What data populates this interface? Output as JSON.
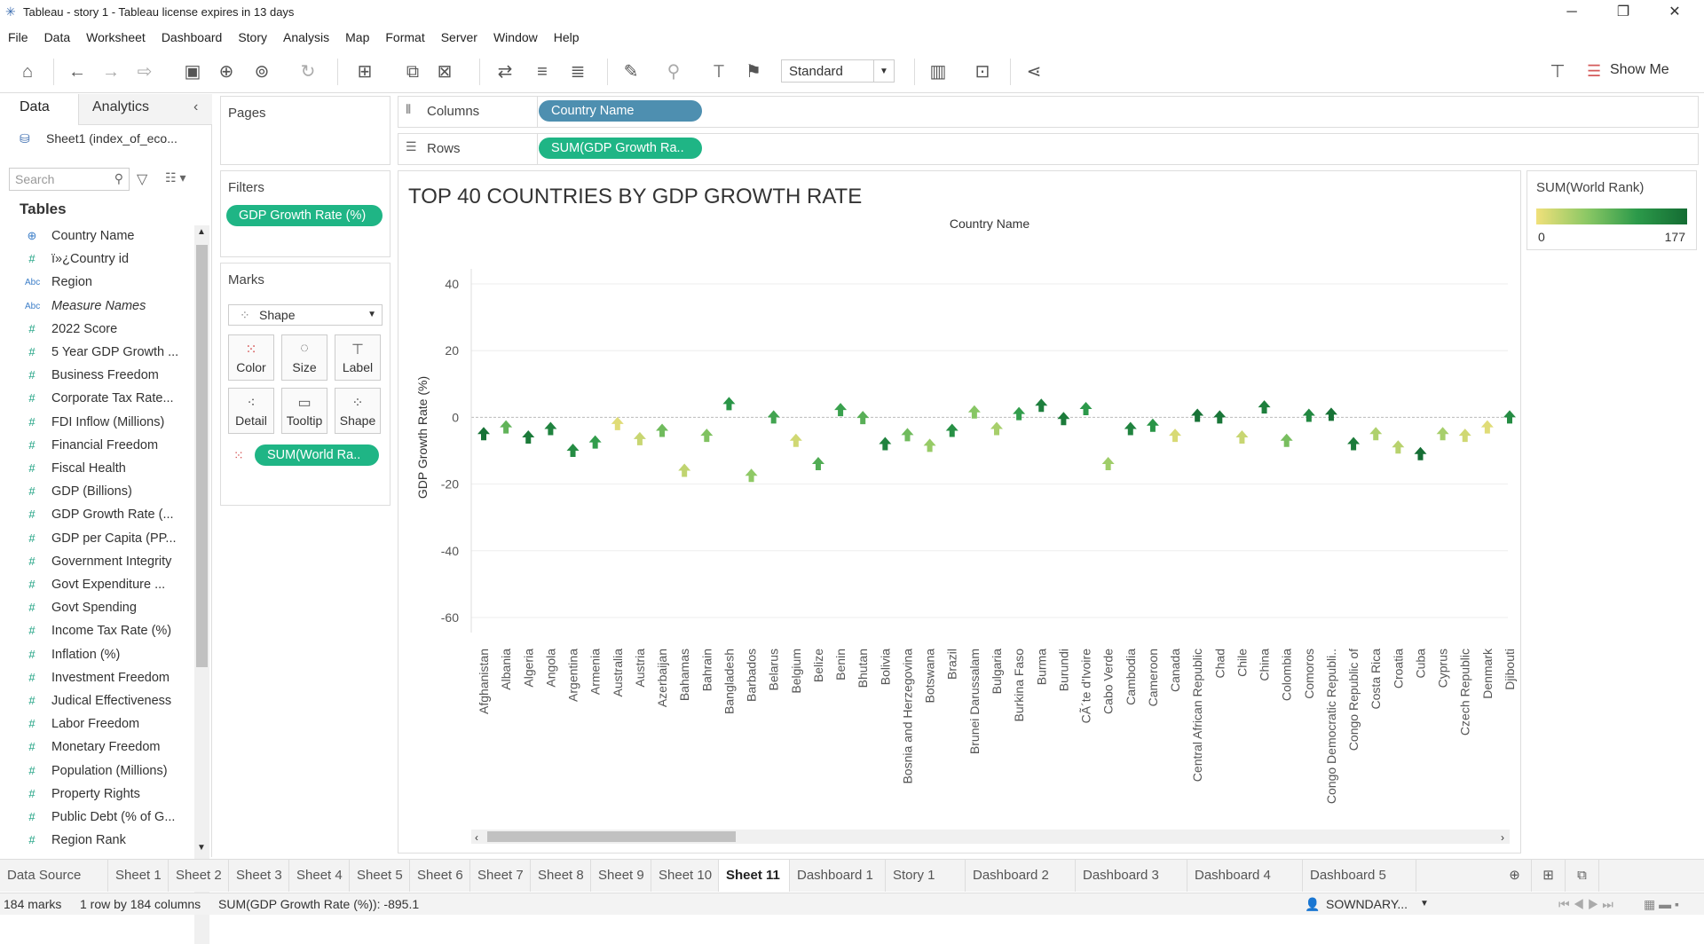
{
  "window": {
    "title": "Tableau - story 1 - Tableau license expires in 13 days"
  },
  "menu": [
    "File",
    "Data",
    "Worksheet",
    "Dashboard",
    "Story",
    "Analysis",
    "Map",
    "Format",
    "Server",
    "Window",
    "Help"
  ],
  "toolbar": {
    "fit": "Standard",
    "show_me": "Show Me"
  },
  "left_pane": {
    "tab_data": "Data",
    "tab_analytics": "Analytics",
    "datasource": "Sheet1 (index_of_eco...",
    "search_placeholder": "Search",
    "tables_heading": "Tables",
    "fields": [
      {
        "icon": "globe",
        "label": "Country Name"
      },
      {
        "icon": "#",
        "label": "ï»¿Country id"
      },
      {
        "icon": "Abc",
        "label": "Region"
      },
      {
        "icon": "Abc",
        "label": "Measure Names"
      },
      {
        "icon": "#",
        "label": "2022 Score"
      },
      {
        "icon": "#",
        "label": "5 Year GDP Growth ..."
      },
      {
        "icon": "#",
        "label": "Business Freedom"
      },
      {
        "icon": "#",
        "label": "Corporate Tax Rate..."
      },
      {
        "icon": "#",
        "label": "FDI Inflow (Millions)"
      },
      {
        "icon": "#",
        "label": "Financial Freedom"
      },
      {
        "icon": "#",
        "label": "Fiscal Health"
      },
      {
        "icon": "#",
        "label": "GDP (Billions)"
      },
      {
        "icon": "#",
        "label": "GDP Growth Rate (..."
      },
      {
        "icon": "#",
        "label": "GDP per Capita (PP..."
      },
      {
        "icon": "#",
        "label": "Government Integrity"
      },
      {
        "icon": "#",
        "label": "Govt Expenditure ..."
      },
      {
        "icon": "#",
        "label": "Govt Spending"
      },
      {
        "icon": "#",
        "label": "Income Tax Rate (%)"
      },
      {
        "icon": "#",
        "label": "Inflation (%)"
      },
      {
        "icon": "#",
        "label": "Investment Freedom"
      },
      {
        "icon": "#",
        "label": "Judical Effectiveness"
      },
      {
        "icon": "#",
        "label": "Labor Freedom"
      },
      {
        "icon": "#",
        "label": "Monetary Freedom"
      },
      {
        "icon": "#",
        "label": "Population (Millions)"
      },
      {
        "icon": "#",
        "label": "Property Rights"
      },
      {
        "icon": "#",
        "label": "Public Debt (% of G..."
      },
      {
        "icon": "#",
        "label": "Region Rank"
      }
    ]
  },
  "shelves": {
    "pages": "Pages",
    "filters": "Filters",
    "filter_pill": "GDP Growth Rate (%)",
    "marks": "Marks",
    "mark_type": "Shape",
    "mark_buttons": [
      "Color",
      "Size",
      "Label",
      "Detail",
      "Tooltip",
      "Shape"
    ],
    "mark_pill": "SUM(World Ra..",
    "columns_label": "Columns",
    "columns_pill": "Country Name",
    "rows_label": "Rows",
    "rows_pill": "SUM(GDP Growth Ra.."
  },
  "legend": {
    "title": "SUM(World Rank)",
    "min": "0",
    "max": "177",
    "colors": [
      "#f0e07a",
      "#146c33"
    ]
  },
  "chart_data": {
    "type": "scatter",
    "title": "TOP 40 COUNTRIES BY GDP GROWTH RATE",
    "xlabel": "Country Name",
    "ylabel": "GDP Growth Rate (%)",
    "ylim": [
      -70,
      45
    ],
    "yticks": [
      40,
      20,
      0,
      -20,
      -40,
      -60
    ],
    "categories": [
      "Afghanistan",
      "Albania",
      "Algeria",
      "Angola",
      "Argentina",
      "Armenia",
      "Australia",
      "Austria",
      "Azerbaijan",
      "Bahamas",
      "Bahrain",
      "Bangladesh",
      "Barbados",
      "Belarus",
      "Belgium",
      "Belize",
      "Benin",
      "Bhutan",
      "Bolivia",
      "Bosnia and Herzegovina",
      "Botswana",
      "Brazil",
      "Brunei Darussalam",
      "Bulgaria",
      "Burkina Faso",
      "Burma",
      "Burundi",
      "CÃ´te d'Ivoire",
      "Cabo Verde",
      "Cambodia",
      "Cameroon",
      "Canada",
      "Central African Republic",
      "Chad",
      "Chile",
      "China",
      "Colombia",
      "Comoros",
      "Congo Democratic Republi..",
      "Congo Republic of",
      "Costa Rica",
      "Croatia",
      "Cuba",
      "Cyprus",
      "Czech Republic",
      "Denmark",
      "Djibouti"
    ],
    "values": [
      -5,
      -3,
      -6,
      -3.5,
      -10,
      -7.5,
      -2,
      -6.5,
      -4,
      -16,
      -5.5,
      4,
      -17.5,
      0,
      -7,
      -14,
      2.2,
      -0.2,
      -8,
      -5.3,
      -8.5,
      -4,
      1.5,
      -3.5,
      1,
      3.5,
      -0.5,
      2.5,
      -14,
      -3.5,
      -2.5,
      -5.5,
      0.5,
      0,
      -6,
      3,
      -7,
      0.5,
      0.8,
      -8,
      -5,
      -9,
      -11,
      -5,
      -5.5,
      -3,
      0
    ],
    "world_rank": [
      170,
      90,
      160,
      150,
      140,
      120,
      10,
      25,
      80,
      30,
      70,
      130,
      60,
      110,
      20,
      100,
      115,
      95,
      150,
      80,
      55,
      135,
      65,
      45,
      120,
      155,
      160,
      125,
      50,
      150,
      130,
      15,
      170,
      165,
      25,
      155,
      75,
      145,
      170,
      160,
      40,
      35,
      175,
      45,
      20,
      10,
      140
    ]
  },
  "sheet_tabs": [
    "Data Source",
    "Sheet 1",
    "Sheet 2",
    "Sheet 3",
    "Sheet 4",
    "Sheet 5",
    "Sheet 6",
    "Sheet 7",
    "Sheet 8",
    "Sheet 9",
    "Sheet 10",
    "Sheet 11",
    "Dashboard 1",
    "Story 1",
    "Dashboard 2",
    "Dashboard 3",
    "Dashboard 4",
    "Dashboard 5"
  ],
  "active_tab": "Sheet 11",
  "status": {
    "marks": "184 marks",
    "dims": "1 row by 184 columns",
    "sum": "SUM(GDP Growth Rate (%)): -895.1",
    "user": "SOWNDARY..."
  }
}
